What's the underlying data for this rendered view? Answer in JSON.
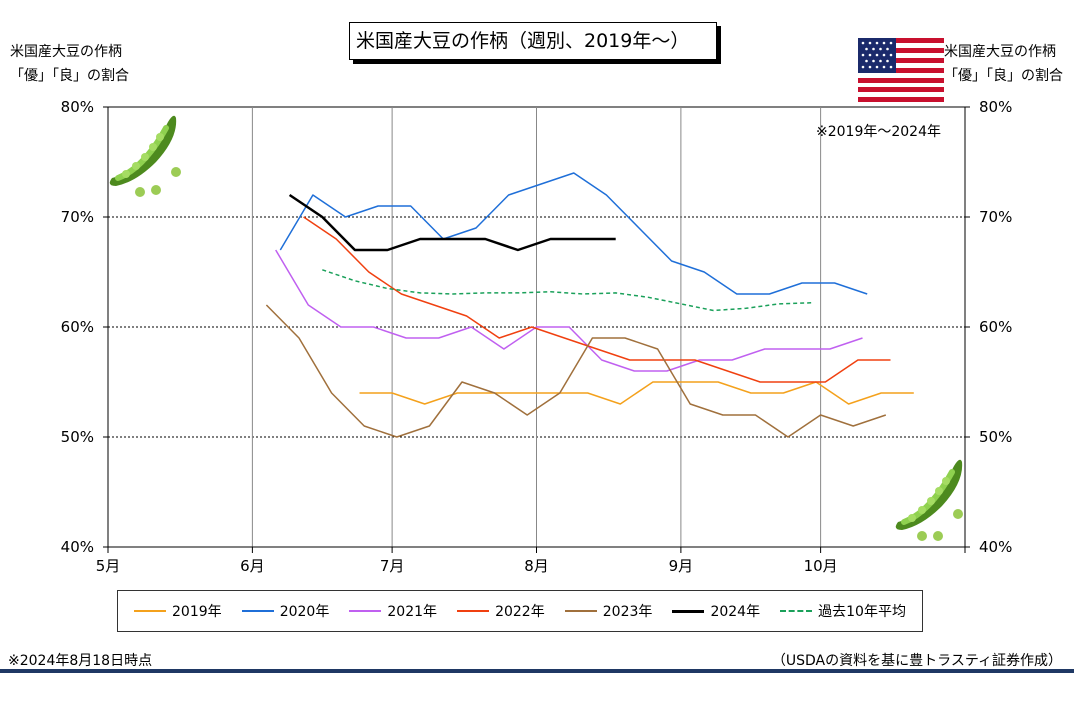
{
  "title": "米国産大豆の作柄（週別、2019年～）",
  "left_axis_caption": [
    "米国産大豆の作柄",
    "「優」「良」の割合"
  ],
  "right_axis_caption": [
    "米国産大豆の作柄",
    "「優」「良」の割合"
  ],
  "note_right": "※2019年～2024年",
  "footer_left": "※2024年8月18日時点",
  "footer_right": "（USDAの資料を基に豊トラスティ証券作成）",
  "icons": [
    "us-flag-icon",
    "green-soybean-pod-icon"
  ],
  "chart_data": {
    "type": "line",
    "title": "米国産大豆の作柄（週別、2019年～）",
    "x_axis": {
      "type": "month",
      "ticks": [
        "5月",
        "6月",
        "7月",
        "8月",
        "9月",
        "10月"
      ],
      "range": [
        "5月",
        "11月"
      ]
    },
    "y_axis": {
      "unit": "%",
      "range": [
        40,
        80
      ],
      "ticks": [
        "40%",
        "50%",
        "60%",
        "70%",
        "80%"
      ],
      "tick_values": [
        40,
        50,
        60,
        70,
        80
      ],
      "label_left": "米国産大豆の作柄「優」「良」の割合",
      "label_right": "米国産大豆の作柄「優」「良」の割合"
    },
    "grid": {
      "horizontal": "dotted",
      "vertical": "solid"
    },
    "legend_position": "bottom",
    "series": [
      {
        "name": "2019年",
        "color": "#f4a11c",
        "style": "solid",
        "width": 1.5,
        "points": [
          [
            "6月24日",
            54
          ],
          [
            "7月1日",
            54
          ],
          [
            "7月8日",
            53
          ],
          [
            "7月15日",
            54
          ],
          [
            "7月22日",
            54
          ],
          [
            "7月29日",
            54
          ],
          [
            "8月5日",
            54
          ],
          [
            "8月12日",
            54
          ],
          [
            "8月19日",
            53
          ],
          [
            "8月26日",
            55
          ],
          [
            "9月2日",
            55
          ],
          [
            "9月9日",
            55
          ],
          [
            "9月16日",
            54
          ],
          [
            "9月23日",
            54
          ],
          [
            "9月30日",
            55
          ],
          [
            "10月7日",
            53
          ],
          [
            "10月14日",
            54
          ],
          [
            "10月21日",
            54
          ]
        ]
      },
      {
        "name": "2020年",
        "color": "#1f6fd8",
        "style": "solid",
        "width": 1.5,
        "points": [
          [
            "6月7日",
            67
          ],
          [
            "6月14日",
            72
          ],
          [
            "6月21日",
            70
          ],
          [
            "6月28日",
            71
          ],
          [
            "7月5日",
            71
          ],
          [
            "7月12日",
            68
          ],
          [
            "7月19日",
            69
          ],
          [
            "7月26日",
            72
          ],
          [
            "8月2日",
            73
          ],
          [
            "8月9日",
            74
          ],
          [
            "8月16日",
            72
          ],
          [
            "8月23日",
            69
          ],
          [
            "8月30日",
            66
          ],
          [
            "9月6日",
            65
          ],
          [
            "9月13日",
            63
          ],
          [
            "9月20日",
            63
          ],
          [
            "9月27日",
            64
          ],
          [
            "10月4日",
            64
          ],
          [
            "10月11日",
            63
          ]
        ]
      },
      {
        "name": "2021年",
        "color": "#c060f0",
        "style": "solid",
        "width": 1.5,
        "points": [
          [
            "6月6日",
            67
          ],
          [
            "6月13日",
            62
          ],
          [
            "6月20日",
            60
          ],
          [
            "6月27日",
            60
          ],
          [
            "7月4日",
            59
          ],
          [
            "7月11日",
            59
          ],
          [
            "7月18日",
            60
          ],
          [
            "7月25日",
            58
          ],
          [
            "8月1日",
            60
          ],
          [
            "8月8日",
            60
          ],
          [
            "8月15日",
            57
          ],
          [
            "8月22日",
            56
          ],
          [
            "8月29日",
            56
          ],
          [
            "9月5日",
            57
          ],
          [
            "9月12日",
            57
          ],
          [
            "9月19日",
            58
          ],
          [
            "9月26日",
            58
          ],
          [
            "10月3日",
            58
          ],
          [
            "10月10日",
            59
          ]
        ]
      },
      {
        "name": "2022年",
        "color": "#f04010",
        "style": "solid",
        "width": 1.5,
        "points": [
          [
            "6月12日",
            70
          ],
          [
            "6月19日",
            68
          ],
          [
            "6月26日",
            65
          ],
          [
            "7月3日",
            63
          ],
          [
            "7月10日",
            62
          ],
          [
            "7月17日",
            61
          ],
          [
            "7月24日",
            59
          ],
          [
            "7月31日",
            60
          ],
          [
            "8月7日",
            59
          ],
          [
            "8月14日",
            58
          ],
          [
            "8月21日",
            57
          ],
          [
            "8月28日",
            57
          ],
          [
            "9月4日",
            57
          ],
          [
            "9月11日",
            56
          ],
          [
            "9月18日",
            55
          ],
          [
            "9月25日",
            55
          ],
          [
            "10月2日",
            55
          ],
          [
            "10月9日",
            57
          ],
          [
            "10月16日",
            57
          ]
        ]
      },
      {
        "name": "2023年",
        "color": "#a0703c",
        "style": "solid",
        "width": 1.5,
        "points": [
          [
            "6月4日",
            62
          ],
          [
            "6月11日",
            59
          ],
          [
            "6月18日",
            54
          ],
          [
            "6月25日",
            51
          ],
          [
            "7月2日",
            50
          ],
          [
            "7月9日",
            51
          ],
          [
            "7月16日",
            55
          ],
          [
            "7月23日",
            54
          ],
          [
            "7月30日",
            52
          ],
          [
            "8月6日",
            54
          ],
          [
            "8月13日",
            59
          ],
          [
            "8月20日",
            59
          ],
          [
            "8月27日",
            58
          ],
          [
            "9月3日",
            53
          ],
          [
            "9月10日",
            52
          ],
          [
            "9月17日",
            52
          ],
          [
            "9月24日",
            50
          ],
          [
            "10月1日",
            52
          ],
          [
            "10月8日",
            51
          ],
          [
            "10月15日",
            52
          ]
        ]
      },
      {
        "name": "2024年",
        "color": "#000000",
        "style": "solid",
        "width": 2.5,
        "points": [
          [
            "6月9日",
            72
          ],
          [
            "6月16日",
            70
          ],
          [
            "6月23日",
            67
          ],
          [
            "6月30日",
            67
          ],
          [
            "7月7日",
            68
          ],
          [
            "7月14日",
            68
          ],
          [
            "7月21日",
            68
          ],
          [
            "7月28日",
            67
          ],
          [
            "8月4日",
            68
          ],
          [
            "8月11日",
            68
          ],
          [
            "8月18日",
            68
          ]
        ]
      },
      {
        "name": "過去10年平均",
        "color": "#1aa05a",
        "style": "dashed",
        "width": 1.5,
        "points": [
          [
            "6月16日",
            65.2
          ],
          [
            "6月23日",
            64.2
          ],
          [
            "6月30日",
            63.5
          ],
          [
            "7月7日",
            63.1
          ],
          [
            "7月14日",
            63
          ],
          [
            "7月21日",
            63.1
          ],
          [
            "7月28日",
            63.1
          ],
          [
            "8月4日",
            63.2
          ],
          [
            "8月11日",
            63
          ],
          [
            "8月18日",
            63.1
          ],
          [
            "8月25日",
            62.7
          ],
          [
            "9月1日",
            62.1
          ],
          [
            "9月8日",
            61.5
          ],
          [
            "9月15日",
            61.7
          ],
          [
            "9月22日",
            62.1
          ],
          [
            "9月29日",
            62.2
          ]
        ]
      }
    ]
  }
}
